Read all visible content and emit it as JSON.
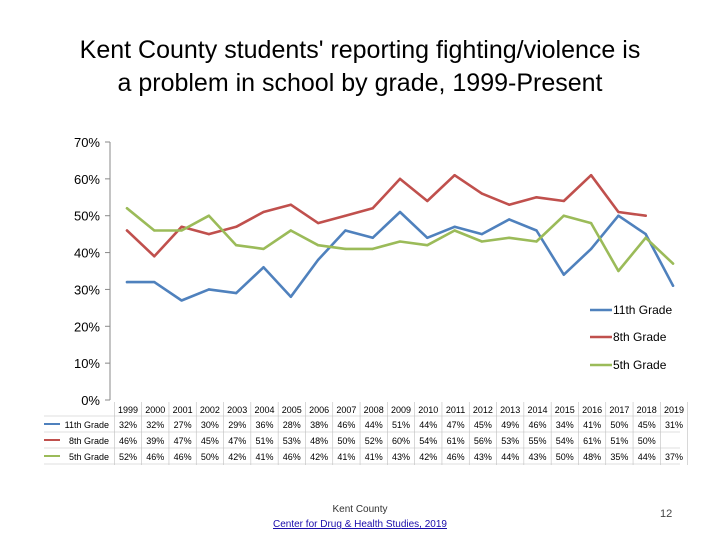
{
  "title": {
    "line1": "Kent County students' reporting fighting/violence is",
    "line2": "a problem in school by grade, 1999-Present"
  },
  "footer": {
    "org": "Kent County",
    "link": "Center for Drug & Health Studies, 2019",
    "page": "12"
  },
  "colors": {
    "11th Grade": "#4f81bd",
    "8th Grade": "#c0504d",
    "5th Grade": "#9bbb59",
    "axis": "#888888"
  },
  "chart_data": {
    "type": "line",
    "title": "Kent County students' reporting fighting/violence is a problem in school by grade, 1999-Present",
    "xlabel": "",
    "ylabel": "",
    "ylim": [
      0,
      70
    ],
    "yticks": [
      "70%",
      "60%",
      "50%",
      "40%",
      "30%",
      "20%",
      "10%",
      "0%"
    ],
    "ytick_values": [
      70,
      60,
      50,
      40,
      30,
      20,
      10,
      0
    ],
    "legend_position": "right",
    "categories": [
      "1999",
      "2000",
      "2001",
      "2002",
      "2003",
      "2004",
      "2005",
      "2006",
      "2007",
      "2008",
      "2009",
      "2010",
      "2011",
      "2012",
      "2013",
      "2014",
      "2015",
      "2016",
      "2017",
      "2018",
      "2019"
    ],
    "series": [
      {
        "name": "11th Grade",
        "values": [
          32,
          32,
          27,
          30,
          29,
          36,
          28,
          38,
          46,
          44,
          51,
          44,
          47,
          45,
          49,
          46,
          34,
          41,
          50,
          45,
          31
        ],
        "labels": [
          "32%",
          "32%",
          "27%",
          "30%",
          "29%",
          "36%",
          "28%",
          "38%",
          "46%",
          "44%",
          "51%",
          "44%",
          "47%",
          "45%",
          "49%",
          "46%",
          "34%",
          "41%",
          "50%",
          "45%",
          "31%"
        ]
      },
      {
        "name": "8th Grade",
        "values": [
          46,
          39,
          47,
          45,
          47,
          51,
          53,
          48,
          50,
          52,
          60,
          54,
          61,
          56,
          53,
          55,
          54,
          61,
          51,
          50,
          null
        ],
        "labels": [
          "46%",
          "39%",
          "47%",
          "45%",
          "47%",
          "51%",
          "53%",
          "48%",
          "50%",
          "52%",
          "60%",
          "54%",
          "61%",
          "56%",
          "53%",
          "55%",
          "54%",
          "61%",
          "51%",
          "50%",
          ""
        ]
      },
      {
        "name": "5th Grade",
        "values": [
          52,
          46,
          46,
          50,
          42,
          41,
          46,
          42,
          41,
          41,
          43,
          42,
          46,
          43,
          44,
          43,
          50,
          48,
          35,
          44,
          37
        ],
        "labels": [
          "52%",
          "46%",
          "46%",
          "50%",
          "42%",
          "41%",
          "46%",
          "42%",
          "41%",
          "41%",
          "43%",
          "42%",
          "46%",
          "43%",
          "44%",
          "43%",
          "50%",
          "48%",
          "35%",
          "44%",
          "37%"
        ]
      }
    ]
  }
}
